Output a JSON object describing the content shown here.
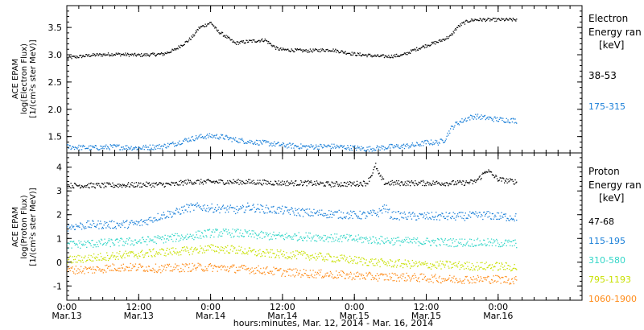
{
  "xlabel": "hours:minutes, Mar. 12, 2014 - Mar. 16, 2014",
  "x_ticks": [
    {
      "hours": 0,
      "time": "0:00",
      "date": "Mar.13"
    },
    {
      "hours": 12,
      "time": "12:00",
      "date": "Mar.13"
    },
    {
      "hours": 24,
      "time": "0:00",
      "date": "Mar.14"
    },
    {
      "hours": 36,
      "time": "12:00",
      "date": "Mar.14"
    },
    {
      "hours": 48,
      "time": "0:00",
      "date": "Mar.15"
    },
    {
      "hours": 60,
      "time": "12:00",
      "date": "Mar.15"
    },
    {
      "hours": 72,
      "time": "0:00",
      "date": "Mar.16"
    }
  ],
  "chart_data": [
    {
      "type": "scatter",
      "panel": "electron",
      "ylabel": [
        "ACE EPAM",
        "log(Electron Flux)",
        "[1/(cm²s ster MeV)]"
      ],
      "legend_title": [
        "Electron",
        "Energy ran",
        "[keV]"
      ],
      "x_units": "hours since Mar.13 0:00",
      "xlim": [
        0,
        86
      ],
      "ylim": [
        1.2,
        3.9
      ],
      "yticks": [
        1.5,
        2.0,
        2.5,
        3.0,
        3.5
      ],
      "ytick_labels": [
        "1.5",
        "2.0",
        "2.5",
        "3.0",
        "3.5"
      ],
      "series": [
        {
          "name": "38-53",
          "color": "#000000",
          "x": [
            0,
            4,
            8,
            12,
            16,
            18,
            19,
            20,
            21,
            22,
            24,
            25,
            26,
            27,
            28,
            30,
            33,
            35,
            36,
            40,
            44,
            48,
            50,
            52,
            54,
            56,
            58,
            60,
            62,
            64,
            65,
            66,
            67,
            68,
            70,
            72,
            75
          ],
          "y": [
            2.95,
            3.0,
            3.02,
            3.0,
            3.02,
            3.1,
            3.18,
            3.25,
            3.35,
            3.5,
            3.6,
            3.45,
            3.38,
            3.3,
            3.22,
            3.25,
            3.28,
            3.12,
            3.1,
            3.08,
            3.1,
            3.02,
            3.0,
            2.98,
            2.98,
            3.0,
            3.1,
            3.18,
            3.25,
            3.35,
            3.5,
            3.58,
            3.63,
            3.65,
            3.65,
            3.65,
            3.65
          ]
        },
        {
          "name": "175-315",
          "color": "#1a7fd8",
          "x": [
            0,
            4,
            8,
            12,
            16,
            18,
            20,
            22,
            24,
            26,
            28,
            30,
            32,
            34,
            36,
            40,
            44,
            48,
            50,
            52,
            54,
            56,
            58,
            60,
            62,
            63,
            64,
            65,
            66,
            67,
            68,
            70,
            72,
            75
          ],
          "y": [
            1.32,
            1.3,
            1.32,
            1.3,
            1.33,
            1.38,
            1.45,
            1.5,
            1.52,
            1.5,
            1.45,
            1.42,
            1.4,
            1.38,
            1.35,
            1.32,
            1.33,
            1.3,
            1.28,
            1.3,
            1.32,
            1.33,
            1.35,
            1.4,
            1.4,
            1.45,
            1.65,
            1.75,
            1.8,
            1.85,
            1.88,
            1.85,
            1.82,
            1.8
          ]
        }
      ]
    },
    {
      "type": "scatter",
      "panel": "proton",
      "ylabel": [
        "ACE EPAM",
        "log(Proton Flux)",
        "[1/(cm²s ster MeV)]"
      ],
      "legend_title": [
        "Proton",
        "Energy ran",
        "[keV]"
      ],
      "x_units": "hours since Mar.13 0:00",
      "xlim": [
        0,
        86
      ],
      "ylim": [
        -1.6,
        4.6
      ],
      "yticks": [
        -1,
        0,
        1,
        2,
        3,
        4
      ],
      "ytick_labels": [
        "-1",
        "0",
        "1",
        "2",
        "3",
        "4"
      ],
      "series": [
        {
          "name": "47-68",
          "color": "#000000",
          "x": [
            0,
            6,
            12,
            18,
            20,
            24,
            30,
            36,
            40,
            44,
            48,
            50,
            51,
            51.5,
            52,
            53,
            54,
            58,
            62,
            66,
            68,
            69,
            70,
            71,
            72,
            75
          ],
          "y": [
            3.25,
            3.25,
            3.28,
            3.3,
            3.4,
            3.4,
            3.4,
            3.35,
            3.35,
            3.3,
            3.32,
            3.35,
            3.8,
            4.1,
            3.7,
            3.35,
            3.35,
            3.35,
            3.35,
            3.35,
            3.4,
            3.6,
            3.9,
            3.7,
            3.5,
            3.4
          ]
        },
        {
          "name": "115-195",
          "color": "#1a7fd8",
          "x": [
            0,
            4,
            8,
            12,
            16,
            18,
            20,
            22,
            24,
            27,
            29,
            30,
            33,
            36,
            40,
            44,
            48,
            50,
            52,
            53,
            54,
            58,
            62,
            66,
            70,
            72,
            75
          ],
          "y": [
            1.5,
            1.6,
            1.6,
            1.65,
            2.0,
            2.1,
            2.3,
            2.35,
            2.3,
            2.25,
            2.2,
            2.35,
            2.25,
            2.2,
            2.1,
            2.05,
            2.0,
            2.0,
            2.1,
            2.35,
            2.0,
            1.95,
            1.95,
            1.95,
            2.0,
            1.95,
            1.9
          ]
        },
        {
          "name": "310-580",
          "color": "#33d6c8",
          "x": [
            0,
            4,
            8,
            12,
            16,
            20,
            24,
            28,
            32,
            36,
            40,
            44,
            48,
            52,
            56,
            60,
            64,
            68,
            72,
            75
          ],
          "y": [
            0.75,
            0.8,
            0.85,
            0.9,
            1.0,
            1.1,
            1.25,
            1.25,
            1.15,
            1.1,
            1.1,
            1.05,
            1.0,
            0.95,
            0.9,
            0.88,
            0.85,
            0.85,
            0.82,
            0.8
          ]
        },
        {
          "name": "795-1193",
          "color": "#c8e000",
          "x": [
            0,
            4,
            8,
            12,
            16,
            20,
            24,
            28,
            32,
            36,
            40,
            44,
            48,
            52,
            56,
            60,
            64,
            68,
            72,
            75
          ],
          "y": [
            0.1,
            0.2,
            0.3,
            0.35,
            0.45,
            0.5,
            0.6,
            0.55,
            0.4,
            0.35,
            0.3,
            0.2,
            0.1,
            0.0,
            -0.05,
            -0.1,
            -0.1,
            -0.15,
            -0.15,
            -0.2
          ]
        },
        {
          "name": "1060-1900",
          "color": "#ff8c1a",
          "x": [
            0,
            4,
            8,
            12,
            16,
            20,
            24,
            28,
            32,
            36,
            40,
            44,
            48,
            52,
            56,
            60,
            64,
            68,
            72,
            75
          ],
          "y": [
            -0.3,
            -0.3,
            -0.2,
            -0.2,
            -0.25,
            -0.2,
            -0.2,
            -0.25,
            -0.3,
            -0.4,
            -0.45,
            -0.5,
            -0.55,
            -0.6,
            -0.6,
            -0.65,
            -0.7,
            -0.7,
            -0.7,
            -0.75
          ]
        }
      ]
    }
  ]
}
